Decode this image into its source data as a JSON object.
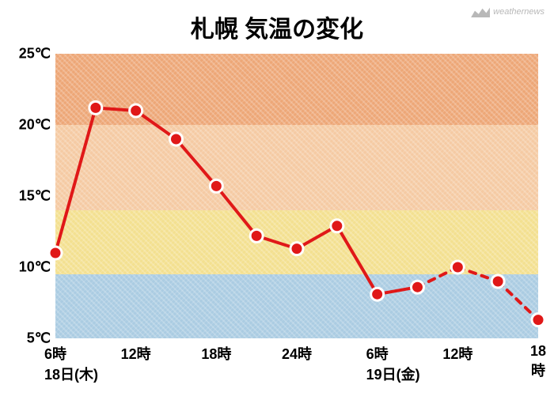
{
  "title": "札幌 気温の変化",
  "title_fontsize": 30,
  "logo_text": "weathernews",
  "chart": {
    "type": "line",
    "ylim": [
      5,
      25
    ],
    "ytick_step": 5,
    "y_unit": "℃",
    "y_labels": [
      "25℃",
      "20℃",
      "15℃",
      "10℃",
      "5℃"
    ],
    "y_label_fontsize": 18,
    "bands": [
      {
        "from": 20,
        "to": 25,
        "color": "#e88a4a"
      },
      {
        "from": 14,
        "to": 20,
        "color": "#f2b985"
      },
      {
        "from": 9.5,
        "to": 14,
        "color": "#f0d66b"
      },
      {
        "from": 5,
        "to": 9.5,
        "color": "#8fbcd9"
      }
    ],
    "x_hours": [
      "6時",
      "12時",
      "18時",
      "24時",
      "6時",
      "12時",
      "18時"
    ],
    "x_hours_fontsize": 18,
    "x_dates": [
      {
        "label": "18日(木)",
        "at_hour_index": 0
      },
      {
        "label": "19日(金)",
        "at_hour_index": 4
      }
    ],
    "x_date_fontsize": 18,
    "series": {
      "color": "#e01818",
      "line_width": 4,
      "marker_radius": 8,
      "points": [
        {
          "x": 0,
          "y": 11.0,
          "dashed_after": false
        },
        {
          "x": 1,
          "y": 21.2,
          "dashed_after": false
        },
        {
          "x": 2,
          "y": 21.0,
          "dashed_after": false
        },
        {
          "x": 3,
          "y": 19.0,
          "dashed_after": false
        },
        {
          "x": 4,
          "y": 15.7,
          "dashed_after": false
        },
        {
          "x": 5,
          "y": 12.2,
          "dashed_after": false
        },
        {
          "x": 6,
          "y": 11.3,
          "dashed_after": false
        },
        {
          "x": 7,
          "y": 12.9,
          "dashed_after": false
        },
        {
          "x": 8,
          "y": 8.1,
          "dashed_after": false
        },
        {
          "x": 9,
          "y": 8.6,
          "dashed_after": true
        },
        {
          "x": 10,
          "y": 10.0,
          "dashed_after": true
        },
        {
          "x": 11,
          "y": 9.0,
          "dashed_after": true
        },
        {
          "x": 12,
          "y": 6.3,
          "dashed_after": false
        }
      ]
    },
    "background_color": "#ffffff"
  }
}
